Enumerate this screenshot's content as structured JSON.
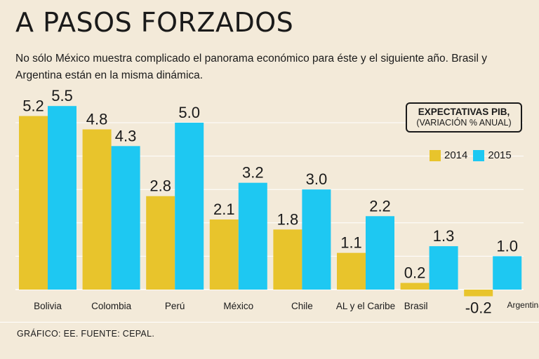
{
  "header": {
    "title": "A PASOS FORZADOS",
    "subtitle": "No sólo México muestra complicado el panorama económico para éste y el siguiente año. Brasil y Argentina están en la misma dinámica."
  },
  "legend": {
    "box_line1": "EXPECTATIVAS PIB,",
    "box_line2": "(VARIACIÓN % ANUAL)"
  },
  "footer": {
    "text": "GRÁFICO: EE. FUENTE: CEPAL."
  },
  "colors": {
    "c2014": "#e8c42c",
    "c2015": "#1ec8f2",
    "background": "#f3ead9",
    "grid": "#ffffff"
  },
  "chart_data": {
    "type": "bar",
    "title": "EXPECTATIVAS PIB, (VARIACIÓN % ANUAL)",
    "xlabel": "",
    "ylabel": "",
    "categories": [
      "Bolivia",
      "Colombia",
      "Perú",
      "México",
      "Chile",
      "AL y el Caribe",
      "Brasil",
      "Argentina"
    ],
    "series": [
      {
        "name": "2014",
        "values": [
          5.2,
          4.8,
          2.8,
          2.1,
          1.8,
          1.1,
          0.2,
          -0.2
        ],
        "labels": [
          "5.2",
          "4.8",
          "2.8",
          "2.1",
          "1.8",
          "1.1",
          "0.2",
          "-0.2"
        ]
      },
      {
        "name": "2015",
        "values": [
          5.5,
          4.3,
          5.0,
          3.2,
          3.0,
          2.2,
          1.3,
          1.0
        ],
        "labels": [
          "5.5",
          "4.3",
          "5.0",
          "3.2",
          "3.0",
          "2.2",
          "1.3",
          "1.0"
        ]
      }
    ],
    "ylim": [
      -0.2,
      5.5
    ],
    "grid": true,
    "legend_position": "top-right"
  }
}
